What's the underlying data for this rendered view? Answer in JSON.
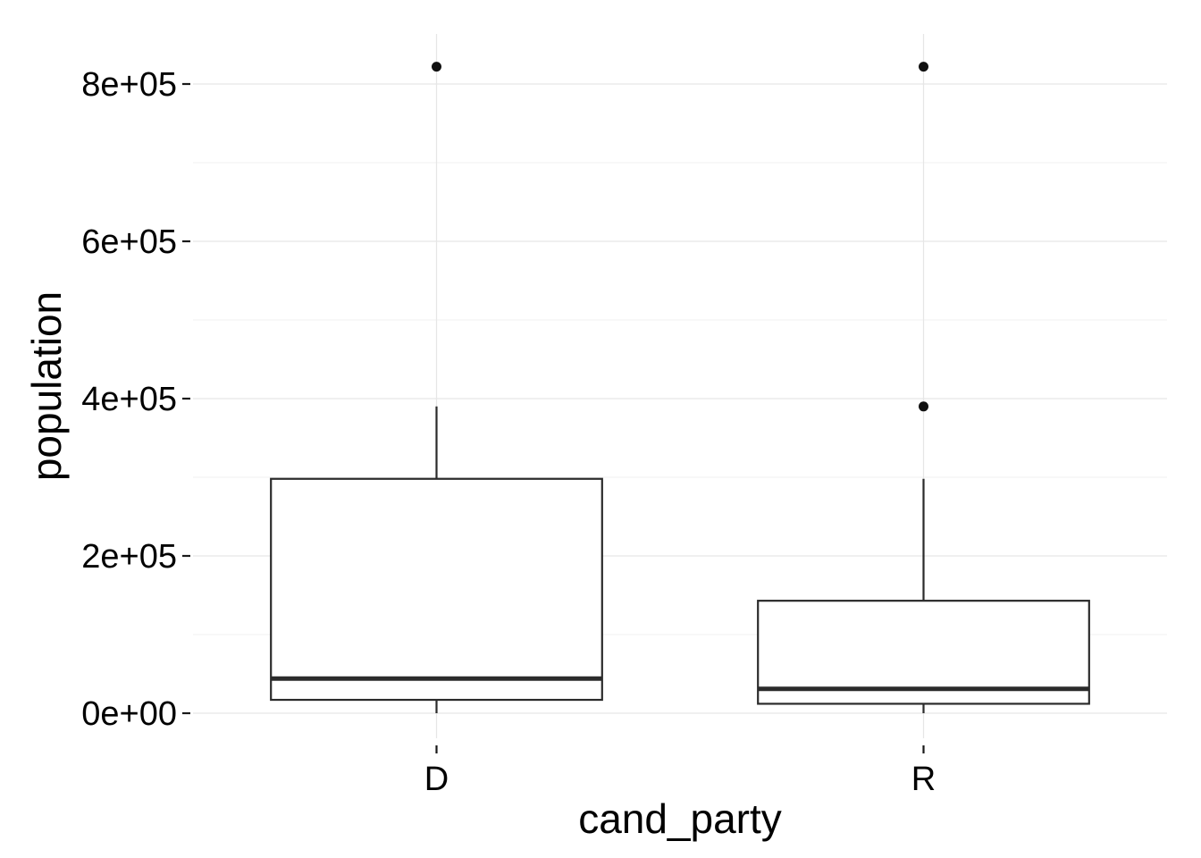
{
  "chart_data": {
    "type": "boxplot",
    "xlabel": "cand_party",
    "ylabel": "population",
    "categories": [
      "D",
      "R"
    ],
    "ylim": [
      -30000,
      870000
    ],
    "y_ticks": [
      0,
      200000,
      400000,
      600000,
      800000
    ],
    "y_tick_labels": [
      "0e+00",
      "2e+05",
      "4e+05",
      "6e+05",
      "8e+05"
    ],
    "y_minor_gridlines": [
      100000,
      300000,
      500000,
      700000
    ],
    "grid": true,
    "boxes": [
      {
        "category": "D",
        "whisker_low": 0,
        "q1": 17000,
        "median": 44000,
        "q3": 298000,
        "whisker_high": 390000,
        "outliers": [
          822000
        ]
      },
      {
        "category": "R",
        "whisker_low": 0,
        "q1": 12000,
        "median": 31000,
        "q3": 143000,
        "whisker_high": 298000,
        "outliers": [
          390000,
          822000
        ]
      }
    ]
  }
}
